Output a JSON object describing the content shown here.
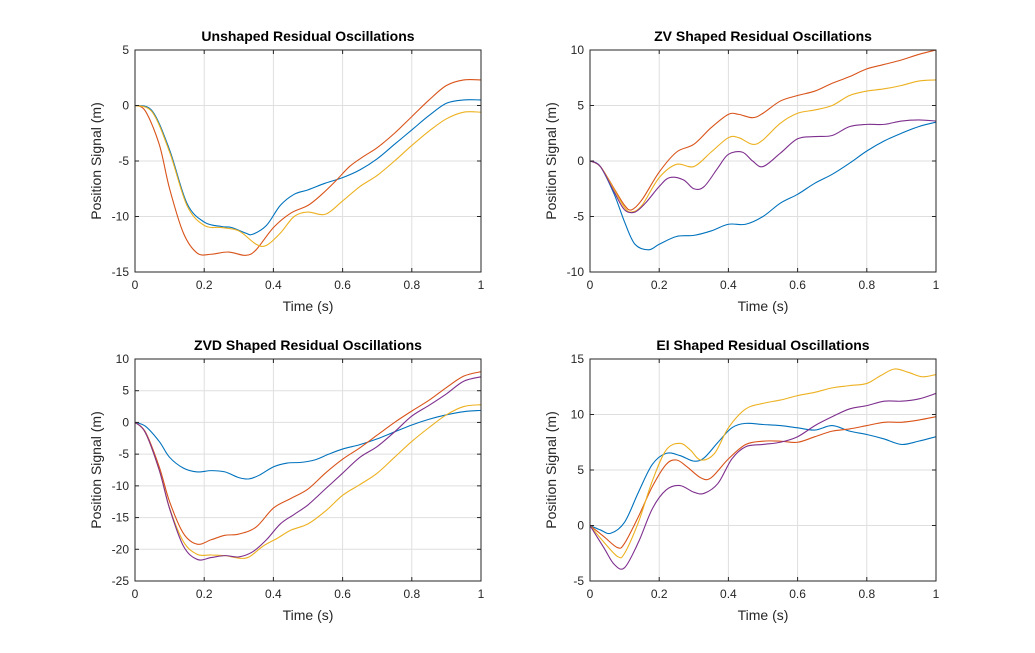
{
  "figure": {
    "background": "#ffffff",
    "series_colors": [
      "#0072BD",
      "#D95319",
      "#EDB120",
      "#7E2F8E"
    ]
  },
  "chart_data": [
    {
      "type": "line",
      "title": "Unshaped Residual Oscillations",
      "xlabel": "Time (s)",
      "ylabel": "Position Signal (m)",
      "xlim": [
        0,
        1
      ],
      "ylim": [
        -15,
        5
      ],
      "xticks": [
        0,
        0.2,
        0.4,
        0.6,
        0.8,
        1
      ],
      "xticklabels": [
        "0",
        "0.2",
        "0.4",
        "0.6",
        "0.8",
        "1"
      ],
      "yticks": [
        -15,
        -10,
        -5,
        0,
        5
      ],
      "yticklabels": [
        "-15",
        "-10",
        "-5",
        "0",
        "5"
      ],
      "grid": true,
      "series": [
        {
          "color": "#0072BD",
          "x": [
            0,
            0.05,
            0.1,
            0.15,
            0.2,
            0.25,
            0.28,
            0.32,
            0.34,
            0.38,
            0.42,
            0.46,
            0.5,
            0.55,
            0.6,
            0.65,
            0.7,
            0.75,
            0.8,
            0.85,
            0.9,
            0.95,
            1.0
          ],
          "y": [
            0,
            -0.5,
            -4,
            -8.8,
            -10.5,
            -10.9,
            -11,
            -11.5,
            -11.6,
            -10.8,
            -9,
            -8,
            -7.6,
            -7,
            -6.5,
            -5.8,
            -4.8,
            -3.5,
            -2.2,
            -0.9,
            0.2,
            0.5,
            0.5
          ]
        },
        {
          "color": "#D95319",
          "x": [
            0,
            0.03,
            0.07,
            0.1,
            0.14,
            0.18,
            0.22,
            0.27,
            0.32,
            0.35,
            0.4,
            0.45,
            0.5,
            0.54,
            0.58,
            0.62,
            0.66,
            0.7,
            0.75,
            0.8,
            0.85,
            0.9,
            0.95,
            1.0
          ],
          "y": [
            0,
            -0.5,
            -3.5,
            -7.5,
            -11.5,
            -13.3,
            -13.4,
            -13.2,
            -13.5,
            -13,
            -11,
            -9.7,
            -9,
            -8,
            -6.8,
            -5.5,
            -4.6,
            -3.8,
            -2.5,
            -1,
            0.5,
            1.8,
            2.3,
            2.3
          ]
        },
        {
          "color": "#EDB120",
          "x": [
            0,
            0.05,
            0.1,
            0.15,
            0.2,
            0.25,
            0.3,
            0.35,
            0.38,
            0.42,
            0.46,
            0.5,
            0.55,
            0.6,
            0.65,
            0.7,
            0.75,
            0.8,
            0.85,
            0.9,
            0.95,
            1.0
          ],
          "y": [
            0,
            -0.6,
            -4.2,
            -9,
            -10.8,
            -11,
            -11.3,
            -12.5,
            -12.6,
            -11.5,
            -10,
            -9.6,
            -9.8,
            -8.6,
            -7.3,
            -6.3,
            -5,
            -3.6,
            -2.3,
            -1.2,
            -0.6,
            -0.6
          ]
        }
      ]
    },
    {
      "type": "line",
      "title": "ZV Shaped Residual Oscillations",
      "xlabel": "Time (s)",
      "ylabel": "Position Signal (m)",
      "xlim": [
        0,
        1
      ],
      "ylim": [
        -10,
        10
      ],
      "xticks": [
        0,
        0.2,
        0.4,
        0.6,
        0.8,
        1
      ],
      "xticklabels": [
        "0",
        "0.2",
        "0.4",
        "0.6",
        "0.8",
        "1"
      ],
      "yticks": [
        -10,
        -5,
        0,
        5,
        10
      ],
      "yticklabels": [
        "-10",
        "-5",
        "0",
        "5",
        "10"
      ],
      "grid": true,
      "series": [
        {
          "color": "#0072BD",
          "x": [
            0,
            0.03,
            0.07,
            0.1,
            0.13,
            0.17,
            0.2,
            0.25,
            0.3,
            0.35,
            0.4,
            0.45,
            0.5,
            0.55,
            0.6,
            0.65,
            0.7,
            0.75,
            0.8,
            0.85,
            0.9,
            0.95,
            1.0
          ],
          "y": [
            0,
            -0.5,
            -3,
            -5.5,
            -7.5,
            -8,
            -7.5,
            -6.8,
            -6.7,
            -6.3,
            -5.7,
            -5.7,
            -5,
            -3.8,
            -3,
            -2,
            -1.2,
            -0.2,
            0.9,
            1.8,
            2.5,
            3.1,
            3.5
          ]
        },
        {
          "color": "#D95319",
          "x": [
            0,
            0.03,
            0.07,
            0.1,
            0.12,
            0.15,
            0.2,
            0.25,
            0.3,
            0.35,
            0.4,
            0.43,
            0.47,
            0.5,
            0.55,
            0.6,
            0.65,
            0.7,
            0.75,
            0.8,
            0.85,
            0.9,
            0.95,
            1.0
          ],
          "y": [
            0,
            -0.5,
            -2.5,
            -4,
            -4.4,
            -3.5,
            -1,
            0.8,
            1.5,
            3,
            4.2,
            4.2,
            3.9,
            4.3,
            5.4,
            5.9,
            6.3,
            7,
            7.6,
            8.3,
            8.7,
            9.1,
            9.6,
            10
          ]
        },
        {
          "color": "#EDB120",
          "x": [
            0,
            0.03,
            0.07,
            0.1,
            0.12,
            0.15,
            0.2,
            0.25,
            0.3,
            0.35,
            0.4,
            0.43,
            0.47,
            0.5,
            0.55,
            0.6,
            0.65,
            0.7,
            0.75,
            0.8,
            0.85,
            0.9,
            0.95,
            1.0
          ],
          "y": [
            0,
            -0.5,
            -2.6,
            -4.2,
            -4.6,
            -4,
            -1.5,
            -0.3,
            -0.5,
            0.8,
            2.1,
            2.1,
            1.5,
            1.9,
            3.4,
            4.3,
            4.6,
            5,
            5.9,
            6.3,
            6.5,
            6.8,
            7.2,
            7.3
          ]
        },
        {
          "color": "#7E2F8E",
          "x": [
            0,
            0.03,
            0.07,
            0.1,
            0.13,
            0.16,
            0.2,
            0.23,
            0.27,
            0.3,
            0.33,
            0.37,
            0.4,
            0.44,
            0.47,
            0.5,
            0.55,
            0.6,
            0.65,
            0.7,
            0.75,
            0.8,
            0.85,
            0.9,
            0.95,
            1.0
          ],
          "y": [
            0,
            -0.5,
            -2.8,
            -4.4,
            -4.6,
            -3.8,
            -2.3,
            -1.5,
            -1.7,
            -2.5,
            -2.3,
            -0.6,
            0.6,
            0.8,
            0,
            -0.5,
            0.7,
            2,
            2.2,
            2.3,
            3.1,
            3.3,
            3.3,
            3.6,
            3.7,
            3.6
          ]
        }
      ]
    },
    {
      "type": "line",
      "title": "ZVD Shaped Residual Oscillations",
      "xlabel": "Time (s)",
      "ylabel": "Position Signal (m)",
      "xlim": [
        0,
        1
      ],
      "ylim": [
        -25,
        10
      ],
      "xticks": [
        0,
        0.2,
        0.4,
        0.6,
        0.8,
        1
      ],
      "xticklabels": [
        "0",
        "0.2",
        "0.4",
        "0.6",
        "0.8",
        "1"
      ],
      "yticks": [
        -25,
        -20,
        -15,
        -10,
        -5,
        0,
        5,
        10
      ],
      "yticklabels": [
        "-25",
        "-20",
        "-15",
        "-10",
        "-5",
        "0",
        "5",
        "10"
      ],
      "grid": true,
      "series": [
        {
          "color": "#0072BD",
          "x": [
            0,
            0.03,
            0.07,
            0.1,
            0.14,
            0.18,
            0.22,
            0.26,
            0.3,
            0.33,
            0.36,
            0.4,
            0.44,
            0.48,
            0.52,
            0.56,
            0.6,
            0.65,
            0.7,
            0.75,
            0.8,
            0.85,
            0.9,
            0.95,
            1.0
          ],
          "y": [
            0,
            -0.6,
            -3,
            -5.5,
            -7.2,
            -7.8,
            -7.6,
            -7.8,
            -8.7,
            -8.9,
            -8.3,
            -7,
            -6.4,
            -6.3,
            -5.9,
            -5,
            -4.2,
            -3.5,
            -2.6,
            -1.5,
            -0.4,
            0.5,
            1.2,
            1.7,
            1.9
          ]
        },
        {
          "color": "#D95319",
          "x": [
            0,
            0.03,
            0.07,
            0.1,
            0.14,
            0.18,
            0.22,
            0.26,
            0.3,
            0.35,
            0.4,
            0.45,
            0.5,
            0.55,
            0.6,
            0.65,
            0.7,
            0.75,
            0.8,
            0.85,
            0.9,
            0.95,
            1.0
          ],
          "y": [
            0,
            -1.5,
            -7,
            -12.5,
            -17.5,
            -19.2,
            -18.5,
            -17.8,
            -17.6,
            -16.5,
            -13.5,
            -12,
            -10.5,
            -8,
            -5.8,
            -4,
            -2,
            0,
            1.8,
            3.5,
            5.5,
            7.3,
            8
          ]
        },
        {
          "color": "#EDB120",
          "x": [
            0,
            0.03,
            0.07,
            0.1,
            0.14,
            0.18,
            0.22,
            0.26,
            0.3,
            0.33,
            0.37,
            0.41,
            0.45,
            0.5,
            0.55,
            0.6,
            0.65,
            0.7,
            0.75,
            0.8,
            0.85,
            0.9,
            0.95,
            1.0
          ],
          "y": [
            0,
            -1.6,
            -7.5,
            -13.5,
            -18.8,
            -20.8,
            -20.9,
            -21,
            -21.4,
            -21.2,
            -19.5,
            -18.3,
            -17,
            -16,
            -14,
            -11.5,
            -9.8,
            -8,
            -5.5,
            -3,
            -0.8,
            1.2,
            2.5,
            2.8
          ]
        },
        {
          "color": "#7E2F8E",
          "x": [
            0,
            0.03,
            0.07,
            0.1,
            0.14,
            0.18,
            0.22,
            0.26,
            0.3,
            0.34,
            0.38,
            0.42,
            0.46,
            0.5,
            0.55,
            0.6,
            0.65,
            0.7,
            0.75,
            0.8,
            0.85,
            0.9,
            0.95,
            1.0
          ],
          "y": [
            0,
            -1.6,
            -7.5,
            -13.6,
            -19.5,
            -21.6,
            -21.3,
            -21,
            -21.2,
            -20.4,
            -18.5,
            -16,
            -14.5,
            -13,
            -10.5,
            -8,
            -5.5,
            -3.8,
            -1.5,
            1,
            2.7,
            4.5,
            6.5,
            7.2
          ]
        }
      ]
    },
    {
      "type": "line",
      "title": "EI Shaped Residual Oscillations",
      "xlabel": "Time (s)",
      "ylabel": "Position Signal (m)",
      "xlim": [
        0,
        1
      ],
      "ylim": [
        -5,
        15
      ],
      "xticks": [
        0,
        0.2,
        0.4,
        0.6,
        0.8,
        1
      ],
      "xticklabels": [
        "0",
        "0.2",
        "0.4",
        "0.6",
        "0.8",
        "1"
      ],
      "yticks": [
        -5,
        0,
        5,
        10,
        15
      ],
      "yticklabels": [
        "-5",
        "0",
        "5",
        "10",
        "15"
      ],
      "grid": true,
      "series": [
        {
          "color": "#0072BD",
          "x": [
            0,
            0.03,
            0.06,
            0.1,
            0.14,
            0.18,
            0.22,
            0.26,
            0.3,
            0.33,
            0.37,
            0.41,
            0.45,
            0.5,
            0.55,
            0.6,
            0.65,
            0.7,
            0.75,
            0.8,
            0.85,
            0.9,
            0.95,
            1.0
          ],
          "y": [
            0,
            -0.4,
            -0.7,
            0.3,
            3,
            5.5,
            6.5,
            6.3,
            5.8,
            6.1,
            7.5,
            8.8,
            9.2,
            9.1,
            9.0,
            8.8,
            8.6,
            9.0,
            8.5,
            8.2,
            7.8,
            7.3,
            7.6,
            8.0
          ]
        },
        {
          "color": "#D95319",
          "x": [
            0,
            0.04,
            0.08,
            0.1,
            0.14,
            0.18,
            0.22,
            0.25,
            0.28,
            0.32,
            0.35,
            0.4,
            0.45,
            0.5,
            0.55,
            0.6,
            0.65,
            0.7,
            0.75,
            0.8,
            0.85,
            0.9,
            0.95,
            1.0
          ],
          "y": [
            0,
            -1,
            -2,
            -1.6,
            0.8,
            3.5,
            5.5,
            5.9,
            5.3,
            4.3,
            4.3,
            6,
            7.3,
            7.6,
            7.6,
            7.5,
            8,
            8.5,
            8.7,
            9.0,
            9.3,
            9.3,
            9.5,
            9.8
          ]
        },
        {
          "color": "#EDB120",
          "x": [
            0,
            0.04,
            0.08,
            0.1,
            0.14,
            0.18,
            0.22,
            0.26,
            0.29,
            0.32,
            0.36,
            0.4,
            0.45,
            0.5,
            0.55,
            0.6,
            0.65,
            0.7,
            0.75,
            0.8,
            0.84,
            0.88,
            0.92,
            0.96,
            1.0
          ],
          "y": [
            0,
            -1.5,
            -2.8,
            -2.5,
            0.3,
            4,
            6.8,
            7.4,
            6.8,
            5.9,
            6.5,
            8.8,
            10.5,
            11,
            11.3,
            11.7,
            12,
            12.4,
            12.6,
            12.8,
            13.5,
            14.1,
            13.8,
            13.4,
            13.6
          ]
        },
        {
          "color": "#7E2F8E",
          "x": [
            0,
            0.04,
            0.07,
            0.1,
            0.14,
            0.18,
            0.22,
            0.26,
            0.3,
            0.33,
            0.37,
            0.41,
            0.45,
            0.5,
            0.55,
            0.6,
            0.65,
            0.7,
            0.75,
            0.8,
            0.85,
            0.9,
            0.95,
            1.0
          ],
          "y": [
            0,
            -2,
            -3.5,
            -3.8,
            -1.5,
            1.5,
            3.2,
            3.6,
            3,
            2.9,
            3.8,
            6,
            7.1,
            7.3,
            7.5,
            8.0,
            9.0,
            9.8,
            10.5,
            10.8,
            11.2,
            11.2,
            11.4,
            11.9
          ]
        }
      ]
    }
  ]
}
